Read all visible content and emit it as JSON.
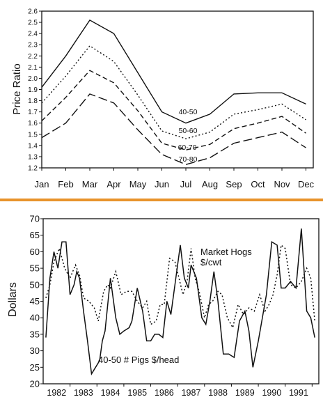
{
  "divider": {
    "color": "#e8932c"
  },
  "chart_data": [
    {
      "type": "line",
      "title": "",
      "xlabel": "",
      "ylabel": "Price Ratio",
      "categories": [
        "Jan",
        "Feb",
        "Mar",
        "Apr",
        "May",
        "Jun",
        "Jul",
        "Aug",
        "Sep",
        "Oct",
        "Nov",
        "Dec"
      ],
      "ylim": [
        1.2,
        2.6
      ],
      "yticks": [
        "1.2",
        "1.3",
        "1.4",
        "1.5",
        "1.6",
        "1.7",
        "1.8",
        "1.9",
        "2.0",
        "2.1",
        "2.2",
        "2.3",
        "2.4",
        "2.5",
        "2.6"
      ],
      "grid": false,
      "series": [
        {
          "name": "40-50",
          "style": "solid",
          "values": [
            1.92,
            2.2,
            2.52,
            2.4,
            2.05,
            1.7,
            1.6,
            1.68,
            1.86,
            1.87,
            1.87,
            1.77
          ]
        },
        {
          "name": "50-60",
          "style": "dotted",
          "values": [
            1.78,
            2.02,
            2.29,
            2.15,
            1.85,
            1.53,
            1.46,
            1.52,
            1.68,
            1.72,
            1.77,
            1.63
          ]
        },
        {
          "name": "60-70",
          "style": "dashed",
          "values": [
            1.62,
            1.83,
            2.07,
            1.96,
            1.71,
            1.42,
            1.36,
            1.41,
            1.55,
            1.6,
            1.66,
            1.51
          ]
        },
        {
          "name": "70-80",
          "style": "longdash",
          "values": [
            1.47,
            1.6,
            1.86,
            1.78,
            1.54,
            1.32,
            1.23,
            1.29,
            1.42,
            1.47,
            1.52,
            1.38
          ]
        }
      ]
    },
    {
      "type": "line",
      "title": "",
      "xlabel": "",
      "ylabel": "Dollars",
      "ylim": [
        20,
        70
      ],
      "yticks": [
        "20",
        "25",
        "30",
        "35",
        "40",
        "45",
        "50",
        "55",
        "60",
        "65",
        "70"
      ],
      "xlim": [
        1981.5,
        1991.75
      ],
      "xticks": [
        "1982",
        "1983",
        "1984",
        "1985",
        "1986",
        "1987",
        "1988",
        "1989",
        "1990",
        "1991"
      ],
      "grid": false,
      "series": [
        {
          "name": "40-50 # Pigs $/head",
          "style": "solid",
          "x": [
            1981.6,
            1981.75,
            1981.9,
            1982.05,
            1982.2,
            1982.35,
            1982.5,
            1982.65,
            1982.75,
            1982.85,
            1983.0,
            1983.15,
            1983.3,
            1983.45,
            1983.6,
            1983.7,
            1983.8,
            1984.0,
            1984.2,
            1984.35,
            1984.5,
            1984.7,
            1984.8,
            1985.0,
            1985.2,
            1985.35,
            1985.5,
            1985.65,
            1985.8,
            1985.95,
            1986.1,
            1986.25,
            1986.4,
            1986.6,
            1986.75,
            1986.9,
            1987.0,
            1987.2,
            1987.4,
            1987.55,
            1987.7,
            1987.85,
            1988.0,
            1988.2,
            1988.4,
            1988.6,
            1988.8,
            1989.0,
            1989.15,
            1989.3,
            1989.5,
            1989.65,
            1989.8,
            1990.0,
            1990.2,
            1990.35,
            1990.5,
            1990.7,
            1990.9,
            1991.1,
            1991.3,
            1991.45,
            1991.6
          ],
          "values": [
            34,
            52,
            60,
            55,
            63,
            63,
            47,
            50,
            54,
            52,
            42,
            33,
            23,
            25,
            27,
            33,
            36,
            52,
            40,
            35,
            36,
            37,
            39,
            49,
            42,
            33,
            33,
            35,
            35,
            34,
            45,
            41,
            50,
            62,
            52,
            49,
            56,
            52,
            40,
            38,
            45,
            54,
            45,
            29,
            29,
            28,
            39,
            42,
            36,
            25,
            33,
            40,
            47,
            63,
            62,
            49,
            49,
            51,
            49,
            67,
            42,
            40,
            34
          ]
        },
        {
          "name": "Market Hogs $/cwt",
          "style": "dotted",
          "x": [
            1981.6,
            1981.75,
            1981.9,
            1982.1,
            1982.3,
            1982.5,
            1982.7,
            1982.85,
            1983.0,
            1983.2,
            1983.4,
            1983.55,
            1983.75,
            1983.9,
            1984.0,
            1984.2,
            1984.4,
            1984.6,
            1984.8,
            1985.0,
            1985.2,
            1985.35,
            1985.5,
            1985.7,
            1985.85,
            1986.0,
            1986.2,
            1986.4,
            1986.55,
            1986.7,
            1986.85,
            1987.0,
            1987.15,
            1987.3,
            1987.5,
            1987.65,
            1987.8,
            1988.0,
            1988.15,
            1988.35,
            1988.55,
            1988.75,
            1988.95,
            1989.15,
            1989.35,
            1989.55,
            1989.75,
            1989.9,
            1990.05,
            1990.2,
            1990.35,
            1990.5,
            1990.7,
            1990.9,
            1991.1,
            1991.3,
            1991.45,
            1991.6
          ],
          "values": [
            46,
            50,
            57,
            61,
            55,
            52,
            56,
            53,
            46,
            45,
            43,
            39,
            48,
            50,
            49,
            54,
            47,
            48,
            48,
            45,
            43,
            45,
            38,
            39,
            44,
            44,
            58,
            57,
            52,
            47,
            51,
            61,
            52,
            48,
            40,
            44,
            45,
            48,
            47,
            40,
            37,
            44,
            41,
            43,
            42,
            47,
            42,
            44,
            47,
            53,
            62,
            61,
            50,
            49,
            51,
            55,
            52,
            39
          ]
        }
      ],
      "annotations": [
        "Market Hogs\n$/cwt",
        "40-50 # Pigs $/head"
      ]
    }
  ]
}
